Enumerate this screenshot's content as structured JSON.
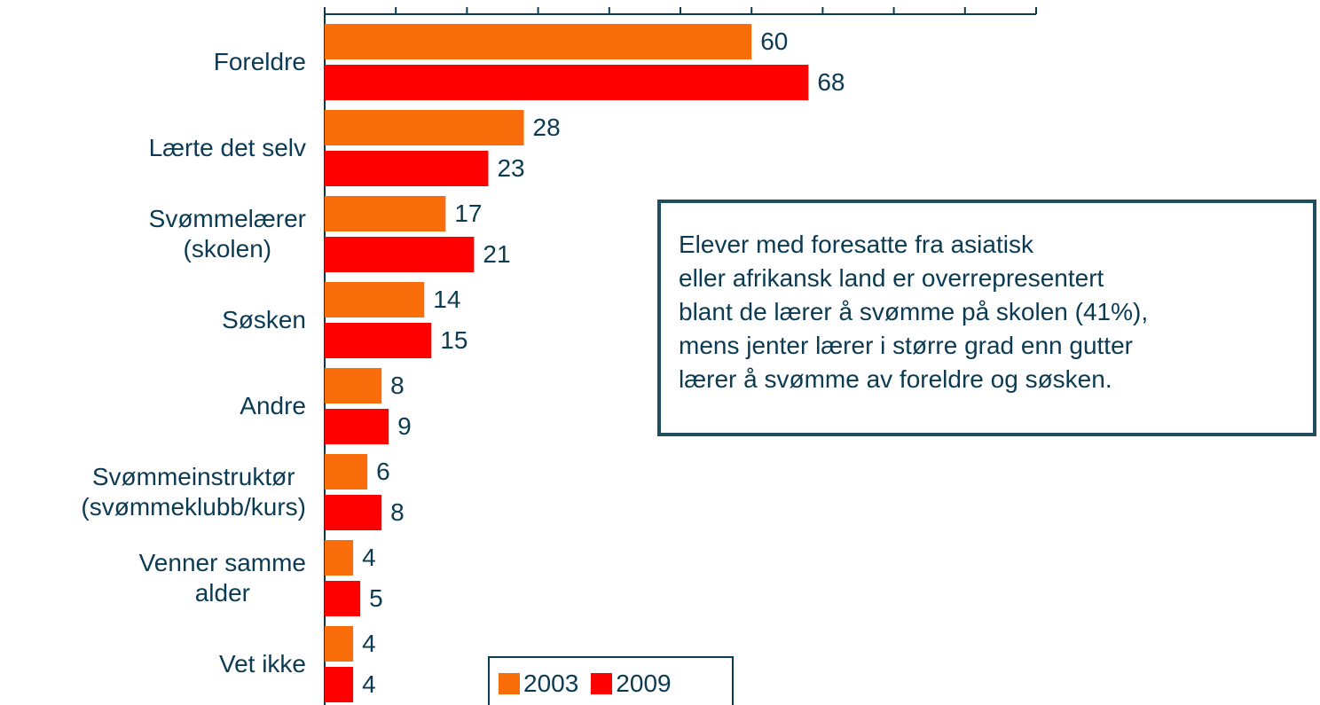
{
  "chart_data": {
    "type": "bar",
    "orientation": "horizontal",
    "categories": [
      "Foreldre",
      "Lærte det selv",
      "Svømmelærer\n(skolen)",
      "Søsken",
      "Andre",
      "Svømmeinstruktør\n(svømmeklubb/kurs)",
      "Venner samme\nalder",
      "Vet ikke"
    ],
    "series": [
      {
        "name": "2003",
        "color": "#f96d0a",
        "values": [
          60,
          28,
          17,
          14,
          8,
          6,
          4,
          4
        ]
      },
      {
        "name": "2009",
        "color": "#ff0000",
        "values": [
          68,
          23,
          21,
          15,
          9,
          8,
          5,
          4
        ]
      }
    ],
    "xlim": [
      0,
      100
    ],
    "xticks": [
      0,
      10,
      20,
      30,
      40,
      50,
      60,
      70,
      80,
      90,
      100
    ],
    "annotation": "Elever med foresatte fra asiatisk\neller afrikansk land er overrepresentert\nblant de lærer å svømme på skolen (41%),\nmens jenter lærer i større grad enn gutter\nlærer å svømme av foreldre og søsken."
  }
}
